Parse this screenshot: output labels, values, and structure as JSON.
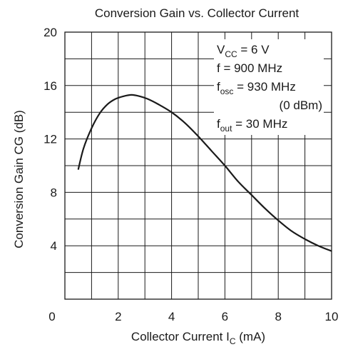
{
  "chart_data": {
    "type": "line",
    "title": "Conversion Gain vs. Collector Current",
    "xlabel": {
      "main": "Collector Current  I",
      "sub": "C",
      "unit": "  (mA)"
    },
    "ylabel": "Conversion Gain  CG  (dB)",
    "xlim": [
      0,
      10
    ],
    "ylim": [
      0,
      20
    ],
    "x_ticks": [
      0,
      2,
      4,
      6,
      8,
      10
    ],
    "y_ticks": [
      4,
      8,
      12,
      16,
      20
    ],
    "x_grid_step": 1,
    "y_grid_step": 2,
    "grid": true,
    "series": [
      {
        "x": [
          0.5,
          0.7,
          1.0,
          1.3,
          1.6,
          1.9,
          2.2,
          2.5,
          2.8,
          3.1,
          3.5,
          4.0,
          4.5,
          5.0,
          5.5,
          6.0,
          6.5,
          7.0,
          7.5,
          8.0,
          8.5,
          9.0,
          9.5,
          10.0
        ],
        "y": [
          9.7,
          11.3,
          12.8,
          13.9,
          14.6,
          15.0,
          15.2,
          15.3,
          15.2,
          15.0,
          14.6,
          14.0,
          13.2,
          12.2,
          11.1,
          10.0,
          8.8,
          7.8,
          6.8,
          5.9,
          5.1,
          4.5,
          4.0,
          3.6
        ]
      }
    ],
    "annotations": [
      {
        "main": "V",
        "sub": "CC",
        "rest": " = 6 V",
        "anchor": "start"
      },
      {
        "main": "f = 900 MHz",
        "sub": "",
        "rest": "",
        "anchor": "start"
      },
      {
        "main": "f",
        "sub": "osc",
        "rest": " = 930 MHz",
        "anchor": "start"
      },
      {
        "main": "(0 dBm)",
        "sub": "",
        "rest": "",
        "anchor": "end"
      },
      {
        "main": "f",
        "sub": "out",
        "rest": " = 30 MHz",
        "anchor": "start"
      }
    ],
    "colors": {
      "line": "#1a1a1a",
      "grid": "#1a1a1a",
      "background": "#ffffff"
    }
  }
}
